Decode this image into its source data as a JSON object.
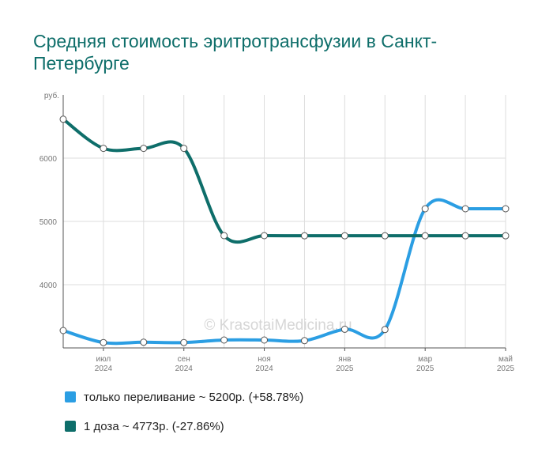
{
  "title": "Средняя стоимость эритротрансфузии в Санкт-Петербурге",
  "watermark": "© KrasotaiMedicina.ru",
  "chart_data": {
    "type": "line",
    "ylabel": "руб.",
    "ylim": [
      3000,
      7000
    ],
    "y_ticks": [
      4000,
      5000,
      6000
    ],
    "grid": true,
    "legend_position": "bottom-left",
    "x": [
      "2024-06",
      "2024-07",
      "2024-08",
      "2024-09",
      "2024-10",
      "2024-11",
      "2024-12",
      "2025-01",
      "2025-02",
      "2025-03",
      "2025-04",
      "2025-05"
    ],
    "x_tick_labels": [
      {
        "x": "2024-07",
        "month": "июл",
        "year": "2024"
      },
      {
        "x": "2024-09",
        "month": "сен",
        "year": "2024"
      },
      {
        "x": "2024-11",
        "month": "ноя",
        "year": "2024"
      },
      {
        "x": "2025-01",
        "month": "янв",
        "year": "2025"
      },
      {
        "x": "2025-03",
        "month": "мар",
        "year": "2025"
      },
      {
        "x": "2025-05",
        "month": "май",
        "year": "2025"
      }
    ],
    "series": [
      {
        "name": "только переливание ~ 5200р. (+58.78%)",
        "color": "#2b9ee3",
        "values": [
          3275,
          3085,
          3090,
          3085,
          3125,
          3125,
          3115,
          3295,
          3290,
          5200,
          5200,
          5200
        ]
      },
      {
        "name": "1 доза ~ 4773р. (-27.86%)",
        "color": "#0e6e6a",
        "values": [
          6615,
          6155,
          6155,
          6155,
          4775,
          4775,
          4773,
          4773,
          4773,
          4773,
          4773,
          4773
        ]
      }
    ]
  }
}
